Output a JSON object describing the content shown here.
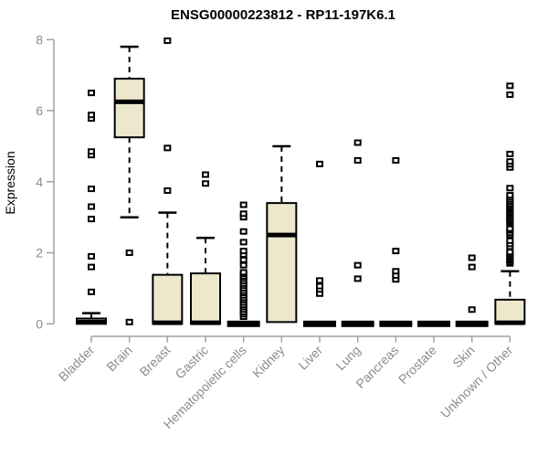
{
  "chart_data": {
    "type": "boxplot",
    "title": "ENSG00000223812 - RP11-197K6.1",
    "ylabel": "Expression",
    "xlabel": "",
    "ylim": [
      0,
      8
    ],
    "yticks": [
      0,
      2,
      4,
      6,
      8
    ],
    "grid": false,
    "legend": "none",
    "colors": {
      "box_fill": "#EDE8CC",
      "box_stroke": "#000000",
      "median": "#000000",
      "whisker": "#000000",
      "outlier_stroke": "#000000",
      "outlier_fill": "#ffffff",
      "axis_line": "#A0A0A0",
      "axis_text": "#8C8C8C",
      "title_text": "#000000",
      "background": "#ffffff"
    },
    "categories": [
      "Bladder",
      "Brain",
      "Breast",
      "Gastric",
      "Hematopoietic cells",
      "Kidney",
      "Liver",
      "Lung",
      "Pancreas",
      "Prostate",
      "Skin",
      "Unknown / Other"
    ],
    "series": [
      {
        "name": "Bladder",
        "q1": 0,
        "median": 0.05,
        "q3": 0.15,
        "whisker_low": 0,
        "whisker_high": 0.3,
        "outliers": [
          0.9,
          1.6,
          1.9,
          2.95,
          3.3,
          3.8,
          4.75,
          4.85,
          5.78,
          5.88,
          6.5
        ]
      },
      {
        "name": "Brain",
        "q1": 5.25,
        "median": 6.25,
        "q3": 6.9,
        "whisker_low": 3.0,
        "whisker_high": 7.8,
        "outliers": [
          2.0,
          0.05
        ]
      },
      {
        "name": "Breast",
        "q1": 0,
        "median": 0.03,
        "q3": 1.38,
        "whisker_low": 0,
        "whisker_high": 3.13,
        "outliers": [
          3.75,
          4.95,
          7.97
        ]
      },
      {
        "name": "Gastric",
        "q1": 0,
        "median": 0.03,
        "q3": 1.42,
        "whisker_low": 0,
        "whisker_high": 2.42,
        "outliers": [
          3.95,
          4.2
        ]
      },
      {
        "name": "Hematopoietic cells",
        "q1": 0,
        "median": 0,
        "q3": 0,
        "whisker_low": 0,
        "whisker_high": 0,
        "outliers": [
          0.2,
          0.27,
          0.33,
          0.4,
          0.47,
          0.53,
          0.6,
          0.67,
          0.73,
          0.8,
          0.87,
          0.93,
          1.0,
          1.07,
          1.13,
          1.2,
          1.27,
          1.33,
          1.4,
          1.45,
          1.65,
          1.8,
          1.95,
          2.05,
          2.3,
          2.6,
          3.0,
          3.1,
          3.35
        ]
      },
      {
        "name": "Kidney",
        "q1": 0.05,
        "median": 2.5,
        "q3": 3.4,
        "whisker_low": 0.05,
        "whisker_high": 5.0,
        "outliers": []
      },
      {
        "name": "Liver",
        "q1": 0,
        "median": 0,
        "q3": 0,
        "whisker_low": 0,
        "whisker_high": 0,
        "outliers": [
          0.85,
          0.97,
          1.06,
          1.22,
          4.5
        ]
      },
      {
        "name": "Lung",
        "q1": 0,
        "median": 0,
        "q3": 0,
        "whisker_low": 0,
        "whisker_high": 0,
        "outliers": [
          1.27,
          1.65,
          4.6,
          5.1
        ]
      },
      {
        "name": "Pancreas",
        "q1": 0,
        "median": 0,
        "q3": 0,
        "whisker_low": 0,
        "whisker_high": 0,
        "outliers": [
          1.25,
          1.36,
          1.48,
          2.05,
          4.6
        ]
      },
      {
        "name": "Prostate",
        "q1": 0,
        "median": 0,
        "q3": 0,
        "whisker_low": 0,
        "whisker_high": 0,
        "outliers": []
      },
      {
        "name": "Skin",
        "q1": 0,
        "median": 0,
        "q3": 0,
        "whisker_low": 0,
        "whisker_high": 0,
        "outliers": [
          0.4,
          1.6,
          1.86
        ]
      },
      {
        "name": "Unknown / Other",
        "q1": 0,
        "median": 0.03,
        "q3": 0.68,
        "whisker_low": 0,
        "whisker_high": 1.48,
        "outliers": [
          1.7,
          1.74,
          1.79,
          1.83,
          1.88,
          1.92,
          1.97,
          2.02,
          2.17,
          2.25,
          2.34,
          2.5,
          2.56,
          2.63,
          2.68,
          2.81,
          2.86,
          2.9,
          2.95,
          3.0,
          3.05,
          3.1,
          3.14,
          3.19,
          3.24,
          3.28,
          3.33,
          3.38,
          3.44,
          3.5,
          3.56,
          3.62,
          3.82,
          4.4,
          4.49,
          4.57,
          4.78,
          6.45,
          6.7
        ]
      }
    ]
  }
}
